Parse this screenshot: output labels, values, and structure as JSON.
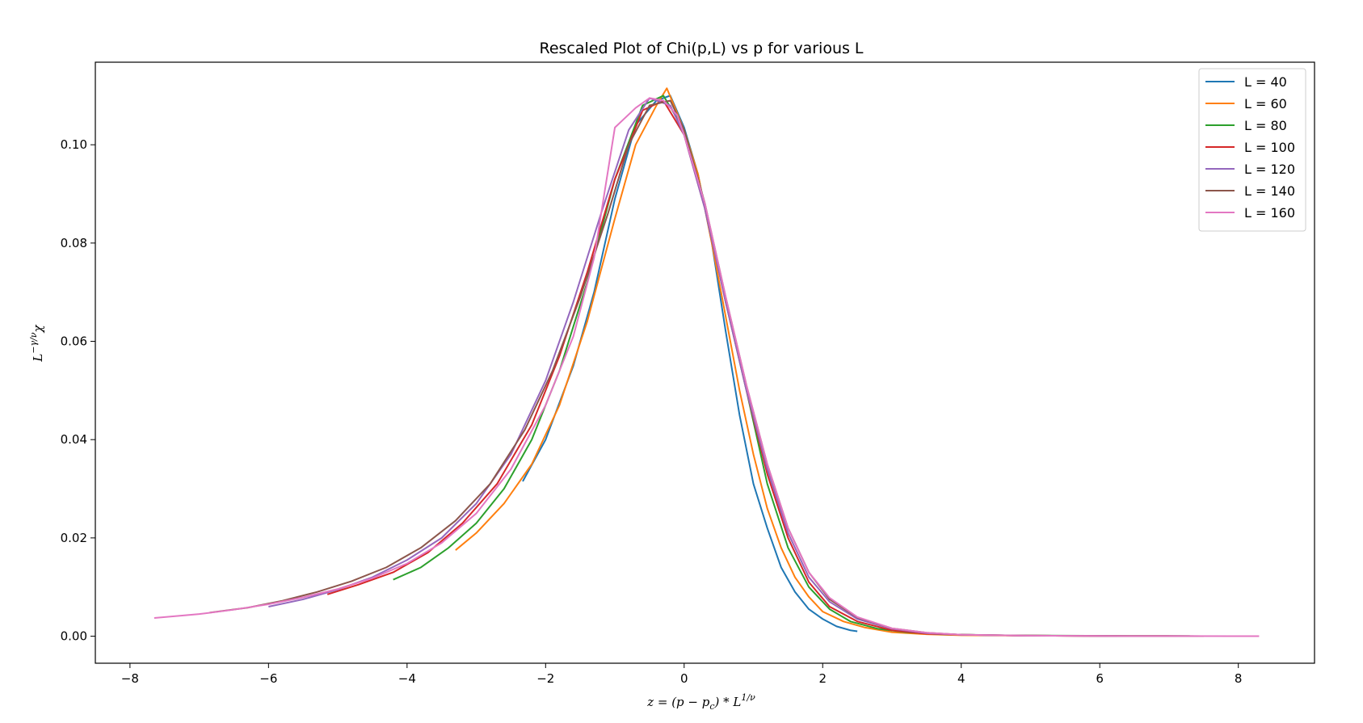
{
  "chart_data": {
    "type": "line",
    "title": "Rescaled Plot of Chi(p,L) vs p for various L",
    "xlabel": "z = (p − p_c) * L^{1/ν}",
    "ylabel": "L^{−γ/ν} χ",
    "xlim": [
      -8.5,
      9.1
    ],
    "ylim": [
      -0.0055,
      0.1168
    ],
    "xticks": [
      -8,
      -6,
      -4,
      -2,
      0,
      2,
      4,
      6,
      8
    ],
    "xtick_labels": [
      "−8",
      "−6",
      "−4",
      "−2",
      "0",
      "2",
      "4",
      "6",
      "8"
    ],
    "yticks": [
      0.0,
      0.02,
      0.04,
      0.06,
      0.08,
      0.1
    ],
    "ytick_labels": [
      "0.00",
      "0.02",
      "0.04",
      "0.06",
      "0.08",
      "0.10"
    ],
    "legend_position": "top-right",
    "grid": false,
    "series": [
      {
        "name": "L = 40",
        "color": "#1f77b4",
        "x": [
          -2.33,
          -2.0,
          -1.6,
          -1.3,
          -1.0,
          -0.7,
          -0.4,
          -0.2,
          0.0,
          0.2,
          0.4,
          0.6,
          0.8,
          1.0,
          1.2,
          1.4,
          1.6,
          1.8,
          2.0,
          2.2,
          2.4,
          2.5
        ],
        "y": [
          0.0315,
          0.04,
          0.055,
          0.07,
          0.089,
          0.104,
          0.109,
          0.11,
          0.1035,
          0.094,
          0.08,
          0.062,
          0.045,
          0.031,
          0.022,
          0.014,
          0.009,
          0.0055,
          0.0035,
          0.002,
          0.0012,
          0.001
        ]
      },
      {
        "name": "L = 60",
        "color": "#ff7f0e",
        "x": [
          -3.3,
          -3.0,
          -2.6,
          -2.2,
          -1.8,
          -1.4,
          -1.0,
          -0.7,
          -0.4,
          -0.25,
          0.0,
          0.2,
          0.4,
          0.6,
          0.8,
          1.0,
          1.2,
          1.4,
          1.6,
          1.8,
          2.0,
          2.3,
          2.6,
          3.0,
          3.5,
          4.0,
          5.0,
          6.0,
          7.0
        ],
        "y": [
          0.0175,
          0.021,
          0.027,
          0.035,
          0.047,
          0.064,
          0.085,
          0.1,
          0.108,
          0.1115,
          0.103,
          0.094,
          0.08,
          0.065,
          0.05,
          0.037,
          0.026,
          0.018,
          0.012,
          0.008,
          0.005,
          0.003,
          0.0018,
          0.0008,
          0.0004,
          0.0002,
          0.0001,
          5e-05,
          2e-05
        ]
      },
      {
        "name": "L = 80",
        "color": "#2ca02c",
        "x": [
          -4.2,
          -3.8,
          -3.4,
          -3.0,
          -2.6,
          -2.2,
          -1.8,
          -1.4,
          -1.0,
          -0.6,
          -0.3,
          0.0,
          0.3,
          0.6,
          0.9,
          1.2,
          1.5,
          1.8,
          2.1,
          2.4,
          2.8,
          3.2,
          3.7,
          4.5,
          5.5,
          6.5,
          7.3
        ],
        "y": [
          0.0115,
          0.014,
          0.018,
          0.023,
          0.03,
          0.04,
          0.054,
          0.072,
          0.093,
          0.108,
          0.11,
          0.103,
          0.088,
          0.068,
          0.05,
          0.031,
          0.018,
          0.01,
          0.0055,
          0.003,
          0.0015,
          0.0008,
          0.0004,
          0.0002,
          0.0001,
          5e-05,
          2e-05
        ]
      },
      {
        "name": "L = 100",
        "color": "#d62728",
        "x": [
          -5.15,
          -4.7,
          -4.2,
          -3.7,
          -3.2,
          -2.7,
          -2.2,
          -1.8,
          -1.4,
          -1.0,
          -0.6,
          -0.3,
          0.0,
          0.3,
          0.6,
          0.9,
          1.2,
          1.5,
          1.8,
          2.1,
          2.5,
          3.0,
          3.5,
          4.0,
          5.0,
          6.0,
          7.0,
          7.4
        ],
        "y": [
          0.0085,
          0.0105,
          0.013,
          0.017,
          0.023,
          0.031,
          0.043,
          0.057,
          0.074,
          0.093,
          0.107,
          0.109,
          0.102,
          0.087,
          0.068,
          0.05,
          0.033,
          0.02,
          0.011,
          0.006,
          0.003,
          0.0012,
          0.0005,
          0.0003,
          0.0001,
          5e-05,
          2e-05,
          1e-05
        ]
      },
      {
        "name": "L = 120",
        "color": "#9467bd",
        "x": [
          -6.0,
          -5.5,
          -5.0,
          -4.5,
          -4.0,
          -3.5,
          -3.0,
          -2.5,
          -2.0,
          -1.6,
          -1.2,
          -0.8,
          -0.5,
          -0.2,
          0.0,
          0.3,
          0.6,
          0.9,
          1.2,
          1.5,
          1.8,
          2.1,
          2.5,
          3.0,
          3.5,
          4.0,
          5.0,
          6.0,
          7.0,
          7.5
        ],
        "y": [
          0.006,
          0.0075,
          0.0095,
          0.012,
          0.0155,
          0.02,
          0.027,
          0.037,
          0.052,
          0.068,
          0.086,
          0.103,
          0.1095,
          0.108,
          0.102,
          0.087,
          0.068,
          0.05,
          0.034,
          0.021,
          0.012,
          0.007,
          0.0035,
          0.0015,
          0.0006,
          0.0003,
          0.0001,
          5e-05,
          2e-05,
          1e-05
        ]
      },
      {
        "name": "L = 140",
        "color": "#8c564b",
        "x": [
          -6.85,
          -6.3,
          -5.8,
          -5.3,
          -4.8,
          -4.3,
          -3.8,
          -3.3,
          -2.8,
          -2.3,
          -1.9,
          -1.5,
          -1.1,
          -0.8,
          -0.5,
          -0.2,
          0.0,
          0.3,
          0.6,
          0.9,
          1.2,
          1.5,
          1.8,
          2.1,
          2.5,
          3.0,
          3.5,
          4.0,
          5.0,
          6.0,
          7.0,
          7.5
        ],
        "y": [
          0.0048,
          0.0058,
          0.0072,
          0.009,
          0.0112,
          0.014,
          0.018,
          0.0235,
          0.031,
          0.042,
          0.054,
          0.069,
          0.086,
          0.1,
          0.108,
          0.109,
          0.103,
          0.088,
          0.069,
          0.051,
          0.035,
          0.022,
          0.013,
          0.0075,
          0.0038,
          0.0016,
          0.0007,
          0.0003,
          0.0001,
          5e-05,
          2e-05,
          1e-05
        ]
      },
      {
        "name": "L = 160",
        "color": "#e377c2",
        "x": [
          -7.65,
          -7.0,
          -6.5,
          -6.0,
          -5.5,
          -5.0,
          -4.5,
          -4.0,
          -3.5,
          -3.0,
          -2.5,
          -2.0,
          -1.6,
          -1.3,
          -1.0,
          -0.7,
          -0.5,
          -0.3,
          -0.1,
          0.0,
          0.3,
          0.6,
          0.9,
          1.2,
          1.5,
          1.8,
          2.1,
          2.5,
          3.0,
          3.5,
          4.0,
          5.0,
          6.0,
          7.0,
          8.0,
          8.3
        ],
        "y": [
          0.0037,
          0.0045,
          0.0054,
          0.0065,
          0.0079,
          0.0096,
          0.0118,
          0.0148,
          0.019,
          0.025,
          0.034,
          0.047,
          0.061,
          0.077,
          0.1035,
          0.1075,
          0.1095,
          0.109,
          0.106,
          0.102,
          0.088,
          0.069,
          0.051,
          0.035,
          0.022,
          0.013,
          0.0078,
          0.0039,
          0.0016,
          0.0007,
          0.0003,
          0.0001,
          5e-05,
          2e-05,
          1e-05,
          1e-05
        ]
      }
    ]
  }
}
